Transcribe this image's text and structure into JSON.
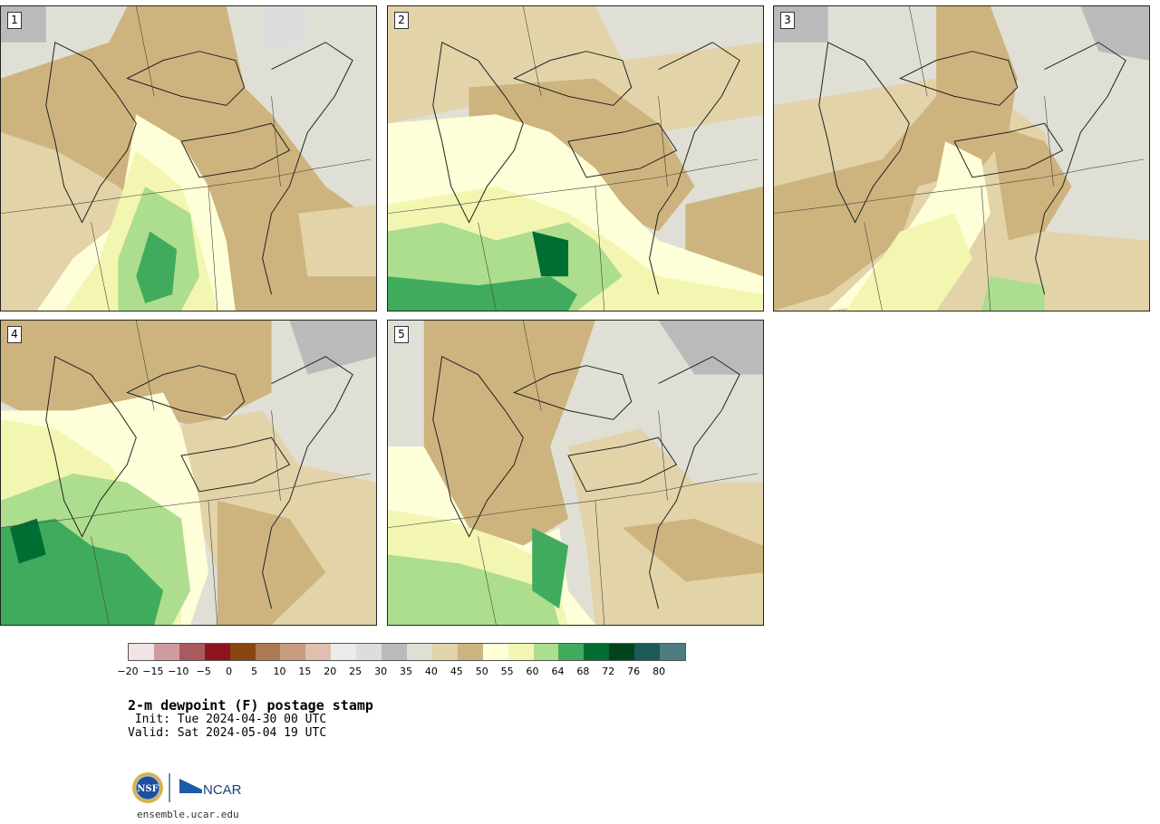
{
  "panels": [
    {
      "label": "1"
    },
    {
      "label": "2"
    },
    {
      "label": "3"
    },
    {
      "label": "4"
    },
    {
      "label": "5"
    }
  ],
  "colorbar": {
    "colors": [
      "#f1e4e4",
      "#cf9b9e",
      "#a95a5d",
      "#8e1520",
      "#8b4513",
      "#ad7854",
      "#c89c80",
      "#dfc0b0",
      "#ebebeb",
      "#dddddd",
      "#bababa",
      "#e0dfd5",
      "#e3d3a9",
      "#cdb47e",
      "#fefed8",
      "#f3f6b1",
      "#addd8e",
      "#41ab5d",
      "#006d32",
      "#00441b",
      "#1c5a5a",
      "#4d7c80"
    ],
    "tick_labels": [
      "−20",
      "−15",
      "−10",
      "−5",
      "0",
      "5",
      "10",
      "15",
      "20",
      "25",
      "30",
      "35",
      "40",
      "45",
      "50",
      "55",
      "60",
      "64",
      "68",
      "72",
      "76",
      "80"
    ]
  },
  "title": "2-m dewpoint (F) postage stamp",
  "init": " Init: Tue 2024-04-30 00 UTC",
  "valid": "Valid: Sat 2024-05-04 19 UTC",
  "footer": {
    "nsf_logo_text": "NSF",
    "ncar_logo_text": "NCAR",
    "site": "ensemble.ucar.edu"
  }
}
